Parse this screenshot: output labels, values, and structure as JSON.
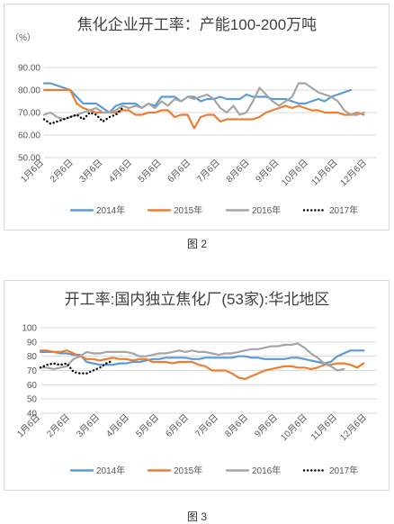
{
  "figures": [
    {
      "caption": "图 2"
    },
    {
      "caption": "图 3"
    }
  ],
  "chart_data": [
    {
      "type": "line",
      "title": "焦化企业开工率：产能100-200万吨",
      "unit": "（%）",
      "ylim": [
        50,
        90
      ],
      "y_ticks": [
        "50.00",
        "60.00",
        "70.00",
        "80.00",
        "90.00"
      ],
      "y_tick_values": [
        50,
        60,
        70,
        80,
        90
      ],
      "x_range": [
        1,
        52
      ],
      "x_ticks": [
        "1月6日",
        "2月6日",
        "3月6日",
        "4月6日",
        "5月6日",
        "6月6日",
        "7月6日",
        "8月6日",
        "9月6日",
        "10月6日",
        "11月6日",
        "12月6日"
      ],
      "x_tick_weeks": [
        1,
        5.5,
        10,
        14.5,
        19,
        23.5,
        28,
        32.5,
        37,
        41.5,
        46,
        50.5
      ],
      "grid": true,
      "legend_position": "bottom",
      "series": [
        {
          "name": "2014年",
          "color": "#5b9bd5",
          "dash": "solid",
          "values": [
            83,
            83,
            82,
            81,
            80,
            77,
            74,
            74,
            74,
            72,
            70,
            73,
            74,
            74,
            74,
            72,
            74,
            73,
            77,
            77,
            77,
            75,
            77,
            77,
            75,
            76,
            76,
            77,
            76,
            76,
            76,
            78,
            77,
            77,
            77,
            76,
            76,
            76,
            75,
            74,
            74,
            75,
            76,
            75,
            77,
            78,
            79,
            80
          ]
        },
        {
          "name": "2015年",
          "color": "#ed7d31",
          "dash": "solid",
          "values": [
            80,
            80,
            80,
            80,
            80,
            74,
            72,
            71,
            70,
            70,
            70,
            70,
            71,
            71,
            69,
            69,
            70,
            70,
            71,
            71,
            68,
            69,
            69,
            63,
            68,
            69,
            69,
            66,
            67,
            67,
            67,
            67,
            67,
            68,
            70,
            71,
            72,
            73,
            72,
            73,
            72,
            71,
            71,
            70,
            70,
            70,
            69,
            69,
            70,
            69
          ]
        },
        {
          "name": "2016年",
          "color": "#a5a5a5",
          "dash": "solid",
          "values": [
            69,
            70,
            68,
            67,
            68,
            69,
            70,
            71,
            72,
            70,
            70,
            71,
            73,
            72,
            73,
            72,
            74,
            72,
            75,
            73,
            76,
            75,
            77,
            76,
            77,
            78,
            76,
            72,
            70,
            73,
            69,
            70,
            75,
            81,
            78,
            75,
            73,
            75,
            77,
            83,
            83,
            81,
            79,
            78,
            77,
            75,
            71,
            69,
            69,
            70
          ]
        },
        {
          "name": "2017年",
          "color": "#000000",
          "dash": "dotted",
          "values": [
            67,
            65,
            66,
            67,
            68,
            69,
            67,
            70,
            69,
            66,
            68,
            69,
            72
          ]
        }
      ]
    },
    {
      "type": "line",
      "title": "开工率:国内独立焦化厂(53家):华北地区",
      "ylim": [
        40,
        100
      ],
      "y_ticks": [
        "40",
        "50",
        "60",
        "70",
        "80",
        "90",
        "100"
      ],
      "y_tick_values": [
        40,
        50,
        60,
        70,
        80,
        90,
        100
      ],
      "x_range": [
        1,
        52
      ],
      "x_ticks": [
        "1月6日",
        "2月6日",
        "3月6日",
        "4月6日",
        "5月6日",
        "6月6日",
        "7月6日",
        "8月6日",
        "9月6日",
        "10月6日",
        "11月6日",
        "12月6日"
      ],
      "x_tick_weeks": [
        1,
        5.5,
        10,
        14.5,
        19,
        23.5,
        28,
        32.5,
        37,
        41.5,
        46,
        50.5
      ],
      "grid": true,
      "legend_position": "bottom",
      "series": [
        {
          "name": "2014年",
          "color": "#5b9bd5",
          "dash": "solid",
          "values": [
            83,
            83,
            83,
            82,
            82,
            81,
            81,
            76,
            75,
            74,
            74,
            74,
            75,
            75,
            76,
            76,
            77,
            78,
            78,
            79,
            79,
            79,
            79,
            78,
            78,
            79,
            79,
            79,
            79,
            79,
            80,
            80,
            79,
            79,
            78,
            78,
            78,
            78,
            79,
            79,
            78,
            77,
            76,
            75,
            76,
            80,
            82,
            84,
            84,
            84
          ]
        },
        {
          "name": "2015年",
          "color": "#ed7d31",
          "dash": "solid",
          "values": [
            84,
            84,
            83,
            83,
            84,
            82,
            80,
            78,
            78,
            77,
            78,
            79,
            78,
            78,
            77,
            78,
            78,
            76,
            76,
            76,
            75,
            76,
            76,
            76,
            74,
            73,
            70,
            70,
            70,
            68,
            65,
            64,
            66,
            68,
            70,
            71,
            72,
            73,
            73,
            72,
            72,
            71,
            72,
            74,
            74,
            75,
            75,
            74,
            72,
            75
          ]
        },
        {
          "name": "2016年",
          "color": "#a5a5a5",
          "dash": "solid",
          "values": [
            72,
            72,
            71,
            72,
            73,
            78,
            80,
            83,
            82,
            82,
            83,
            83,
            83,
            83,
            82,
            80,
            80,
            81,
            82,
            82,
            83,
            84,
            83,
            84,
            83,
            83,
            82,
            81,
            82,
            82,
            83,
            84,
            85,
            85,
            86,
            87,
            87,
            88,
            88,
            89,
            86,
            82,
            79,
            75,
            73,
            70,
            71
          ]
        },
        {
          "name": "2017年",
          "color": "#000000",
          "dash": "dotted",
          "values": [
            72,
            74,
            75,
            74,
            75,
            69,
            68,
            68,
            70,
            72,
            75,
            77
          ]
        }
      ]
    }
  ]
}
